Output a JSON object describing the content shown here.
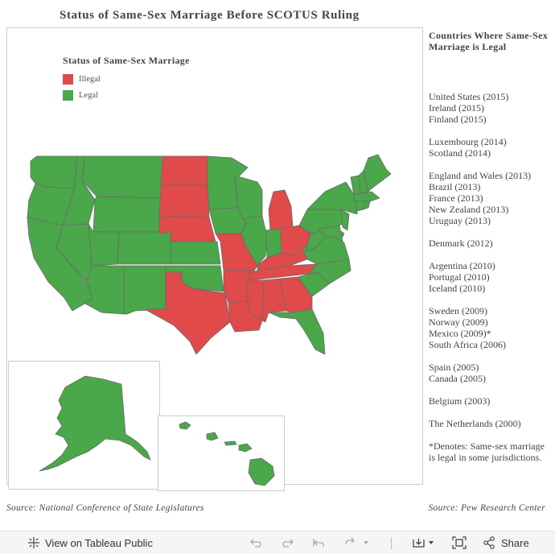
{
  "title": "Status of Same-Sex Marriage Before SCOTUS Ruling",
  "colors": {
    "illegal": "#e04a4a",
    "legal": "#4aa74a",
    "border": "#6a6a6a"
  },
  "legend": {
    "title": "Status of Same-Sex Marriage",
    "items": [
      {
        "label": "Illegal"
      },
      {
        "label": "Legal"
      }
    ]
  },
  "map": {
    "states": [
      {
        "name": "WA",
        "status": "Legal"
      },
      {
        "name": "OR",
        "status": "Legal"
      },
      {
        "name": "CA",
        "status": "Legal"
      },
      {
        "name": "ID",
        "status": "Legal"
      },
      {
        "name": "NV",
        "status": "Legal"
      },
      {
        "name": "MT",
        "status": "Legal"
      },
      {
        "name": "WY",
        "status": "Legal"
      },
      {
        "name": "UT",
        "status": "Legal"
      },
      {
        "name": "AZ",
        "status": "Legal"
      },
      {
        "name": "CO",
        "status": "Legal"
      },
      {
        "name": "NM",
        "status": "Legal"
      },
      {
        "name": "ND",
        "status": "Illegal"
      },
      {
        "name": "SD",
        "status": "Illegal"
      },
      {
        "name": "NE",
        "status": "Illegal"
      },
      {
        "name": "KS",
        "status": "Legal"
      },
      {
        "name": "OK",
        "status": "Legal"
      },
      {
        "name": "TX",
        "status": "Illegal"
      },
      {
        "name": "MN",
        "status": "Legal"
      },
      {
        "name": "IA",
        "status": "Legal"
      },
      {
        "name": "MO",
        "status": "Illegal"
      },
      {
        "name": "AR",
        "status": "Illegal"
      },
      {
        "name": "LA",
        "status": "Illegal"
      },
      {
        "name": "WI",
        "status": "Legal"
      },
      {
        "name": "IL",
        "status": "Legal"
      },
      {
        "name": "MI",
        "status": "Illegal"
      },
      {
        "name": "IN",
        "status": "Legal"
      },
      {
        "name": "OH",
        "status": "Illegal"
      },
      {
        "name": "KY",
        "status": "Illegal"
      },
      {
        "name": "TN",
        "status": "Illegal"
      },
      {
        "name": "MS",
        "status": "Illegal"
      },
      {
        "name": "AL",
        "status": "Illegal"
      },
      {
        "name": "GA",
        "status": "Illegal"
      },
      {
        "name": "FL",
        "status": "Legal"
      },
      {
        "name": "SC",
        "status": "Legal"
      },
      {
        "name": "NC",
        "status": "Legal"
      },
      {
        "name": "VA",
        "status": "Legal"
      },
      {
        "name": "WV",
        "status": "Legal"
      },
      {
        "name": "PA",
        "status": "Legal"
      },
      {
        "name": "NY",
        "status": "Legal"
      },
      {
        "name": "NJ",
        "status": "Legal"
      },
      {
        "name": "DE",
        "status": "Legal"
      },
      {
        "name": "MD",
        "status": "Legal"
      },
      {
        "name": "VT",
        "status": "Legal"
      },
      {
        "name": "NH",
        "status": "Legal"
      },
      {
        "name": "ME",
        "status": "Legal"
      },
      {
        "name": "MA",
        "status": "Legal"
      },
      {
        "name": "CT",
        "status": "Legal"
      },
      {
        "name": "RI",
        "status": "Legal"
      },
      {
        "name": "AK",
        "status": "Legal"
      },
      {
        "name": "HI",
        "status": "Legal"
      }
    ]
  },
  "sidebar": {
    "title": "Countries Where Same-Sex Marriage is Legal",
    "groups": [
      [
        "United States (2015)",
        "Ireland (2015)",
        "Finland (2015)"
      ],
      [
        "Luxembourg (2014)",
        "Scotland (2014)"
      ],
      [
        "England and Wales (2013)",
        "Brazil (2013)",
        "France (2013)",
        "New Zealand (2013)",
        "Uruguay (2013)"
      ],
      [
        "Denmark (2012)"
      ],
      [
        "Argentina (2010)",
        "Portugal (2010)",
        "Iceland (2010)"
      ],
      [
        "Sweden (2009)",
        "Norway (2009)",
        "Mexico (2009)*",
        "South Africa (2006)"
      ],
      [
        "Spain (2005)",
        "Canada (2005)"
      ],
      [
        "Belgium (2003)"
      ],
      [
        "The Netherlands (2000)"
      ]
    ],
    "note": "*Denotes: Same-sex marriage is legal in some jurisdictions."
  },
  "sources": {
    "left": "Source: National Conference of State Legislatures",
    "right": "Source: Pew Research Center"
  },
  "toolbar": {
    "view_label": "View on Tableau Public",
    "share_label": "Share"
  }
}
